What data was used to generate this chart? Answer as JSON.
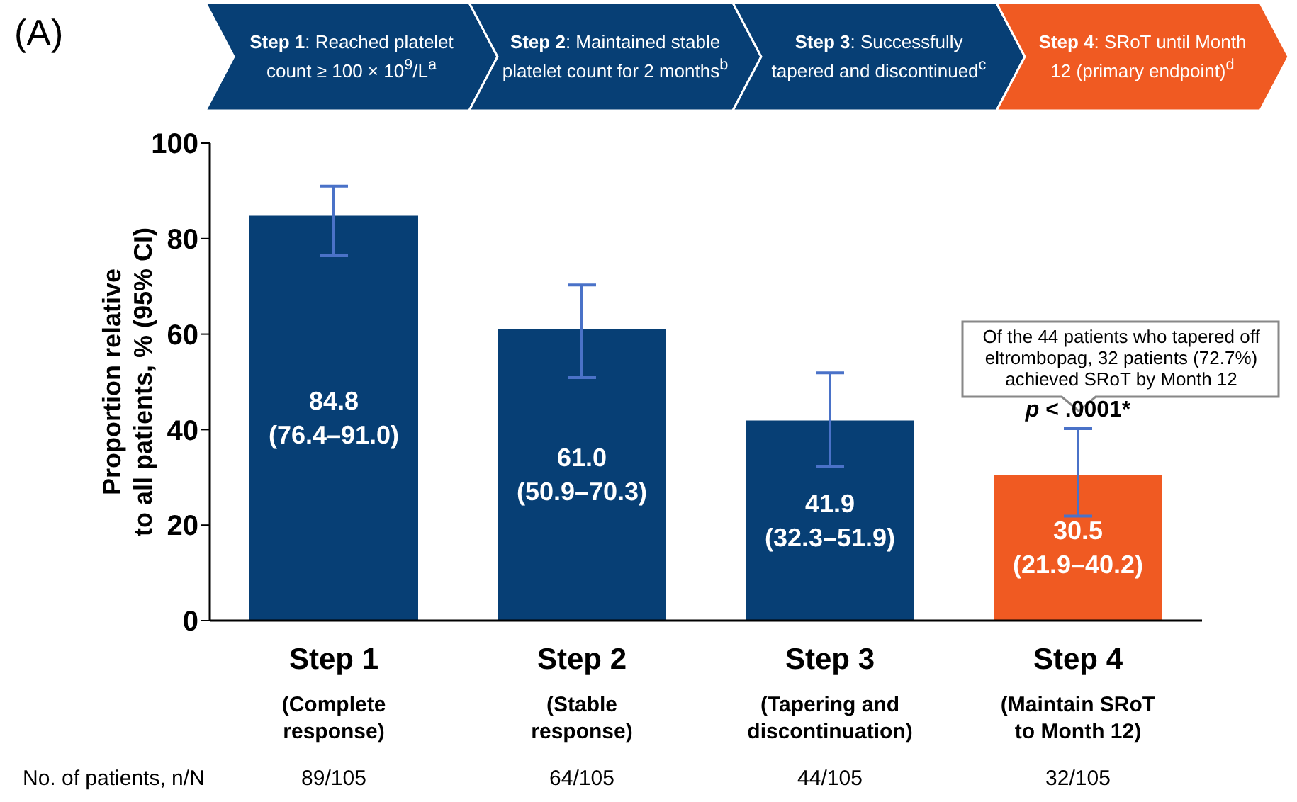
{
  "chart_data": {
    "type": "bar",
    "categories": [
      "Step 1\n(Complete response)",
      "Step 2\n(Stable response)",
      "Step 3\n(Tapering and discontinuation)",
      "Step 4\n(Maintain SRoT to Month 12)"
    ],
    "values": [
      84.8,
      61.0,
      41.9,
      30.5
    ],
    "colors": [
      "#073f75",
      "#073f75",
      "#073f75",
      "#f05a22"
    ],
    "errors": [
      [
        76.4,
        91.0
      ],
      [
        50.9,
        70.3
      ],
      [
        32.3,
        51.9
      ],
      [
        21.9,
        40.2
      ]
    ],
    "value_labels": [
      "84.8\n(76.4–91.0)",
      "61.0\n(50.9–70.3)",
      "41.9\n(32.3–51.9)",
      "30.5\n(21.9–40.2)"
    ],
    "ylabel": "Proportion relative to all patients, % (95% CI)",
    "ylim": [
      0,
      100
    ],
    "yticks": [
      0,
      20,
      40,
      60,
      80,
      100
    ],
    "grid": false,
    "legend": false,
    "annotations": [
      "(A)",
      "Step 1: Reached platelet count ≥ 100 × 10$^{9}$/L$^{a}$",
      "Step 2: Maintained stable platelet count for 2 months$^{b}$",
      "Step 3: Successfully tapered and discontinued$^{c}$",
      "Step 4: SRoT until Month 12 (primary endpoint)$^{d}$",
      "Of the 44 patients who tapered off eltrombopag, 32 patients (72.7%) achieved SRoT by Month 12",
      "p < .0001*",
      "No. of patients, n/N",
      "89/105",
      "64/105",
      "44/105",
      "32/105"
    ]
  }
}
